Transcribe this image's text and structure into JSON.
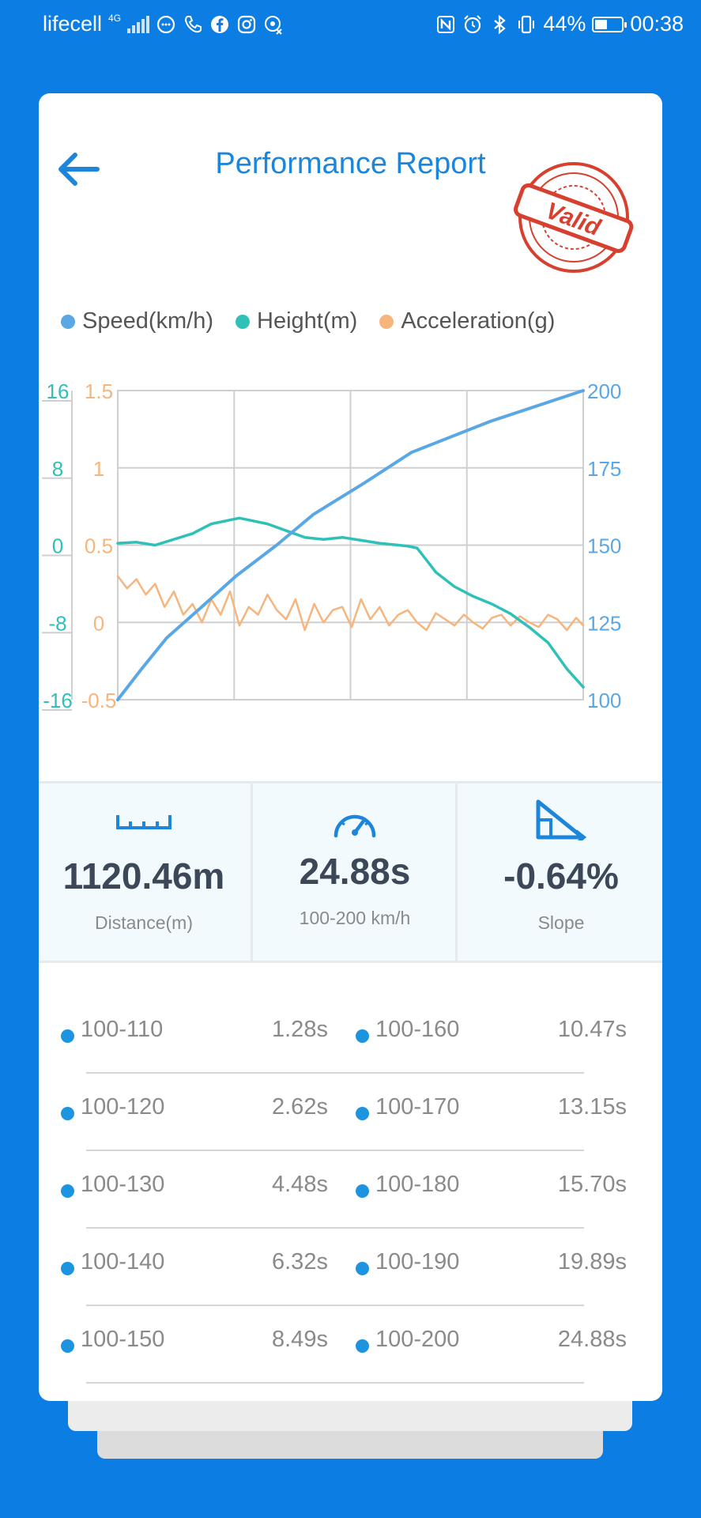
{
  "status_bar": {
    "carrier": "lifecell",
    "network": "4G",
    "battery": "44%",
    "battery_level": 0.44,
    "time": "00:38"
  },
  "header": {
    "title": "Performance Report",
    "stamp_text": "Valid"
  },
  "colors": {
    "speed": "#5aa7e6",
    "height": "#2fc0b8",
    "acceleration": "#f7b57e",
    "accent": "#1d86db",
    "stamp": "#d7402f"
  },
  "chart_data": {
    "type": "line",
    "legend": [
      "Speed(km/h)",
      "Height(m)",
      "Acceleration(g)"
    ],
    "axes": {
      "height_ticks": [
        "16",
        "8",
        "0",
        "-8",
        "-16"
      ],
      "acceleration_ticks": [
        "1.5",
        "1",
        "0.5",
        "0",
        "-0.5"
      ],
      "speed_ticks": [
        "200",
        "175",
        "150",
        "125",
        "100"
      ],
      "height_range": [
        -16,
        16
      ],
      "acceleration_range": [
        -0.5,
        1.5
      ],
      "speed_range": [
        100,
        200
      ],
      "time_range": [
        0,
        24.88
      ]
    },
    "grid": true,
    "series": [
      {
        "name": "Speed(km/h)",
        "t": [
          0,
          1.28,
          2.62,
          4.48,
          6.32,
          8.49,
          10.47,
          13.15,
          15.7,
          19.89,
          24.88
        ],
        "values": [
          100,
          110,
          120,
          130,
          140,
          150,
          160,
          170,
          180,
          190,
          200
        ]
      },
      {
        "name": "Height(m)",
        "t": [
          0,
          1,
          2,
          3,
          4,
          5,
          6,
          6.5,
          7,
          8,
          9,
          10,
          11,
          12,
          13,
          14,
          15,
          15.5,
          16,
          17,
          18,
          19,
          20,
          21,
          22,
          23,
          24,
          24.88
        ],
        "values": [
          0.2,
          0.3,
          0,
          0.6,
          1.2,
          2.2,
          2.6,
          2.8,
          2.6,
          2.2,
          1.5,
          0.8,
          0.6,
          0.8,
          0.5,
          0.2,
          0,
          -0.1,
          -0.3,
          -2.8,
          -4.3,
          -5.3,
          -6.1,
          -7.1,
          -8.5,
          -10.1,
          -12.8,
          -14.7
        ]
      },
      {
        "name": "Acceleration(g)",
        "t": [
          0,
          0.5,
          1,
          1.5,
          2,
          2.5,
          3,
          3.5,
          4,
          4.5,
          5,
          5.5,
          6,
          6.5,
          7,
          7.5,
          8,
          8.5,
          9,
          9.5,
          10,
          10.5,
          11,
          11.5,
          12,
          12.5,
          13,
          13.5,
          14,
          14.5,
          15,
          15.5,
          16,
          16.5,
          17,
          17.5,
          18,
          18.5,
          19,
          19.5,
          20,
          20.5,
          21,
          21.5,
          22,
          22.5,
          23,
          23.5,
          24,
          24.5,
          24.88
        ],
        "values": [
          0.3,
          0.22,
          0.28,
          0.18,
          0.25,
          0.1,
          0.2,
          0.05,
          0.12,
          0.0,
          0.15,
          0.05,
          0.2,
          -0.02,
          0.1,
          0.05,
          0.18,
          0.08,
          0.02,
          0.15,
          -0.05,
          0.12,
          0.0,
          0.08,
          0.1,
          -0.03,
          0.15,
          0.02,
          0.1,
          -0.02,
          0.05,
          0.08,
          0.0,
          -0.05,
          0.06,
          0.02,
          -0.02,
          0.05,
          0.0,
          -0.04,
          0.03,
          0.05,
          -0.02,
          0.04,
          0.0,
          -0.03,
          0.05,
          0.02,
          -0.05,
          0.03,
          -0.02
        ]
      }
    ]
  },
  "stats": [
    {
      "icon": "ruler-icon",
      "value": "1120.46m",
      "label": "Distance(m)"
    },
    {
      "icon": "speedometer-icon",
      "value": "24.88s",
      "label": "100-200 km/h"
    },
    {
      "icon": "slope-icon",
      "value": "-0.64%",
      "label": "Slope"
    }
  ],
  "splits": [
    {
      "left_range": "100-110",
      "left_time": "1.28s",
      "right_range": "100-160",
      "right_time": "10.47s"
    },
    {
      "left_range": "100-120",
      "left_time": "2.62s",
      "right_range": "100-170",
      "right_time": "13.15s"
    },
    {
      "left_range": "100-130",
      "left_time": "4.48s",
      "right_range": "100-180",
      "right_time": "15.70s"
    },
    {
      "left_range": "100-140",
      "left_time": "6.32s",
      "right_range": "100-190",
      "right_time": "19.89s"
    },
    {
      "left_range": "100-150",
      "left_time": "8.49s",
      "right_range": "100-200",
      "right_time": "24.88s"
    }
  ]
}
